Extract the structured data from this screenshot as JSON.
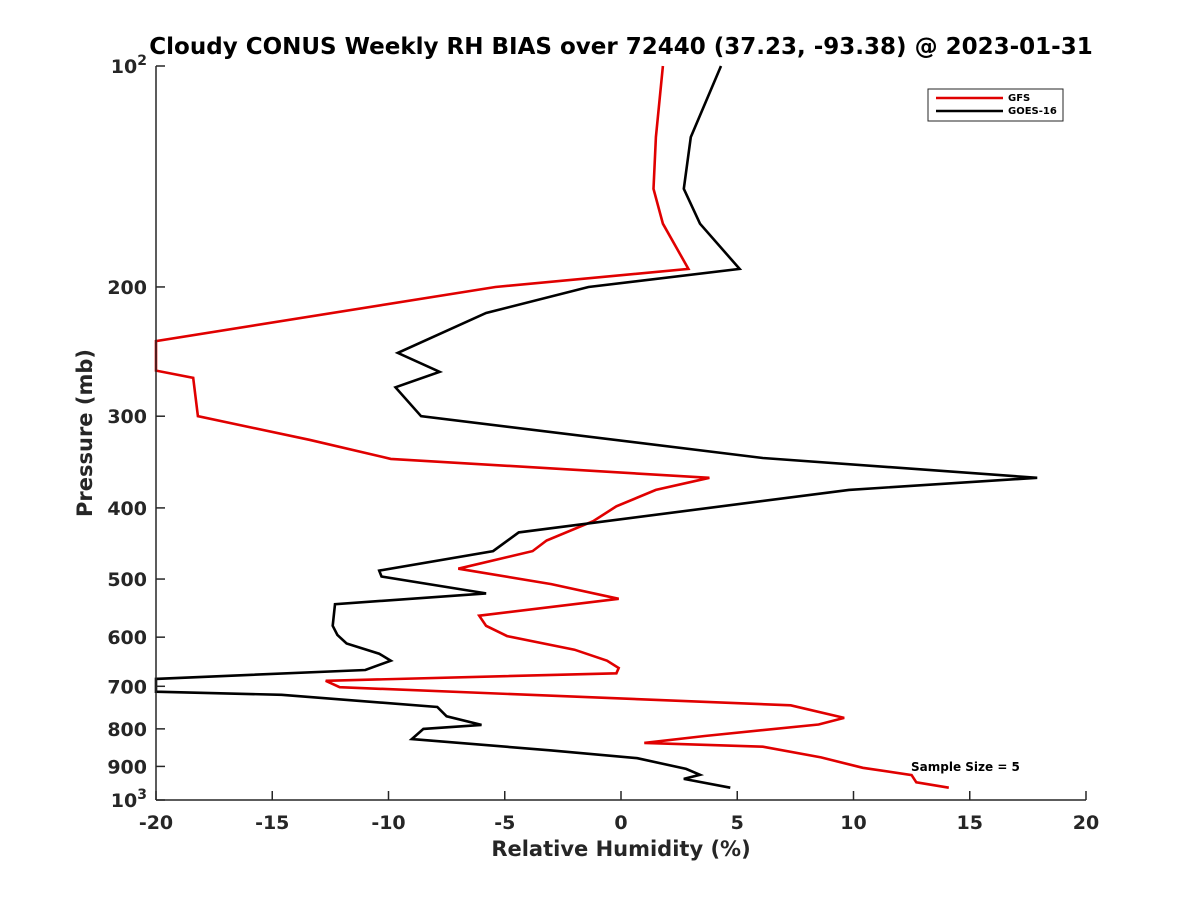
{
  "chart_data": {
    "type": "line",
    "title": "Cloudy CONUS Weekly RH BIAS over 72440 (37.23, -93.38) @ 2023-01-31",
    "xlabel": "Relative Humidity (%)",
    "ylabel": "Pressure (mb)",
    "xlim": [
      -20,
      20
    ],
    "ylim": [
      100,
      1000
    ],
    "y_scale": "log",
    "y_reversed": true,
    "grid": false,
    "legend_position": "top-right",
    "x_ticks": [
      {
        "value": -20,
        "label": "-20"
      },
      {
        "value": -15,
        "label": "-15"
      },
      {
        "value": -10,
        "label": "-10"
      },
      {
        "value": -5,
        "label": "-5"
      },
      {
        "value": 0,
        "label": "0"
      },
      {
        "value": 5,
        "label": "5"
      },
      {
        "value": 10,
        "label": "10"
      },
      {
        "value": 15,
        "label": "15"
      },
      {
        "value": 20,
        "label": "20"
      }
    ],
    "y_ticks": [
      {
        "value": 100,
        "base": "10",
        "exp": "2"
      },
      {
        "value": 200,
        "base": "200",
        "exp": ""
      },
      {
        "value": 300,
        "base": "300",
        "exp": ""
      },
      {
        "value": 400,
        "base": "400",
        "exp": ""
      },
      {
        "value": 500,
        "base": "500",
        "exp": ""
      },
      {
        "value": 600,
        "base": "600",
        "exp": ""
      },
      {
        "value": 700,
        "base": "700",
        "exp": ""
      },
      {
        "value": 800,
        "base": "800",
        "exp": ""
      },
      {
        "value": 900,
        "base": "900",
        "exp": ""
      },
      {
        "value": 1000,
        "base": "10",
        "exp": "3"
      }
    ],
    "series": [
      {
        "name": "GFS",
        "color": "#e00000",
        "points": [
          [
            1.8,
            100
          ],
          [
            1.5,
            125
          ],
          [
            1.4,
            147
          ],
          [
            1.8,
            164
          ],
          [
            2.9,
            189
          ],
          [
            -5.4,
            200
          ],
          [
            -20,
            237
          ],
          [
            -20,
            260
          ],
          [
            -18.4,
            266
          ],
          [
            -18.2,
            300
          ],
          [
            -13.4,
            323
          ],
          [
            -9.9,
            343
          ],
          [
            3.8,
            364
          ],
          [
            1.5,
            378
          ],
          [
            -0.2,
            398
          ],
          [
            -1.2,
            417
          ],
          [
            -3.2,
            443
          ],
          [
            -3.8,
            458
          ],
          [
            -7.0,
            484
          ],
          [
            -3.0,
            508
          ],
          [
            -0.1,
            532
          ],
          [
            -6.1,
            561
          ],
          [
            -5.8,
            579
          ],
          [
            -4.9,
            598
          ],
          [
            -2.0,
            624
          ],
          [
            -0.6,
            646
          ],
          [
            -0.1,
            661
          ],
          [
            -0.2,
            672
          ],
          [
            -12.7,
            688
          ],
          [
            -12.1,
            702
          ],
          [
            7.3,
            743
          ],
          [
            9.6,
            773
          ],
          [
            8.5,
            789
          ],
          [
            3.6,
            818
          ],
          [
            1.0,
            836
          ],
          [
            6.1,
            846
          ],
          [
            8.6,
            875
          ],
          [
            10.4,
            904
          ],
          [
            12.5,
            925
          ],
          [
            12.7,
            946
          ],
          [
            14.1,
            962
          ]
        ]
      },
      {
        "name": "GOES-16",
        "color": "#000000",
        "points": [
          [
            4.3,
            100
          ],
          [
            3.0,
            125
          ],
          [
            2.7,
            147
          ],
          [
            3.4,
            164
          ],
          [
            5.1,
            189
          ],
          [
            -1.4,
            200
          ],
          [
            -5.8,
            217
          ],
          [
            -9.6,
            246
          ],
          [
            -7.8,
            261
          ],
          [
            -9.7,
            274
          ],
          [
            -8.6,
            300
          ],
          [
            6.1,
            342
          ],
          [
            17.9,
            364
          ],
          [
            9.8,
            378
          ],
          [
            -4.4,
            432
          ],
          [
            -5.5,
            458
          ],
          [
            -10.4,
            487
          ],
          [
            -10.3,
            496
          ],
          [
            -5.8,
            523
          ],
          [
            -12.3,
            541
          ],
          [
            -12.4,
            579
          ],
          [
            -12.2,
            596
          ],
          [
            -11.8,
            612
          ],
          [
            -10.4,
            632
          ],
          [
            -9.9,
            646
          ],
          [
            -11.0,
            665
          ],
          [
            -20,
            684
          ],
          [
            -20,
            712
          ],
          [
            -14.6,
            719
          ],
          [
            -7.9,
            747
          ],
          [
            -7.5,
            769
          ],
          [
            -6.0,
            790
          ],
          [
            -8.5,
            800
          ],
          [
            -9.0,
            826
          ],
          [
            -3.0,
            856
          ],
          [
            0.7,
            877
          ],
          [
            2.8,
            907
          ],
          [
            3.4,
            924
          ],
          [
            2.7,
            936
          ],
          [
            4.7,
            962
          ]
        ]
      }
    ],
    "annotation": "Sample Size = 5"
  }
}
